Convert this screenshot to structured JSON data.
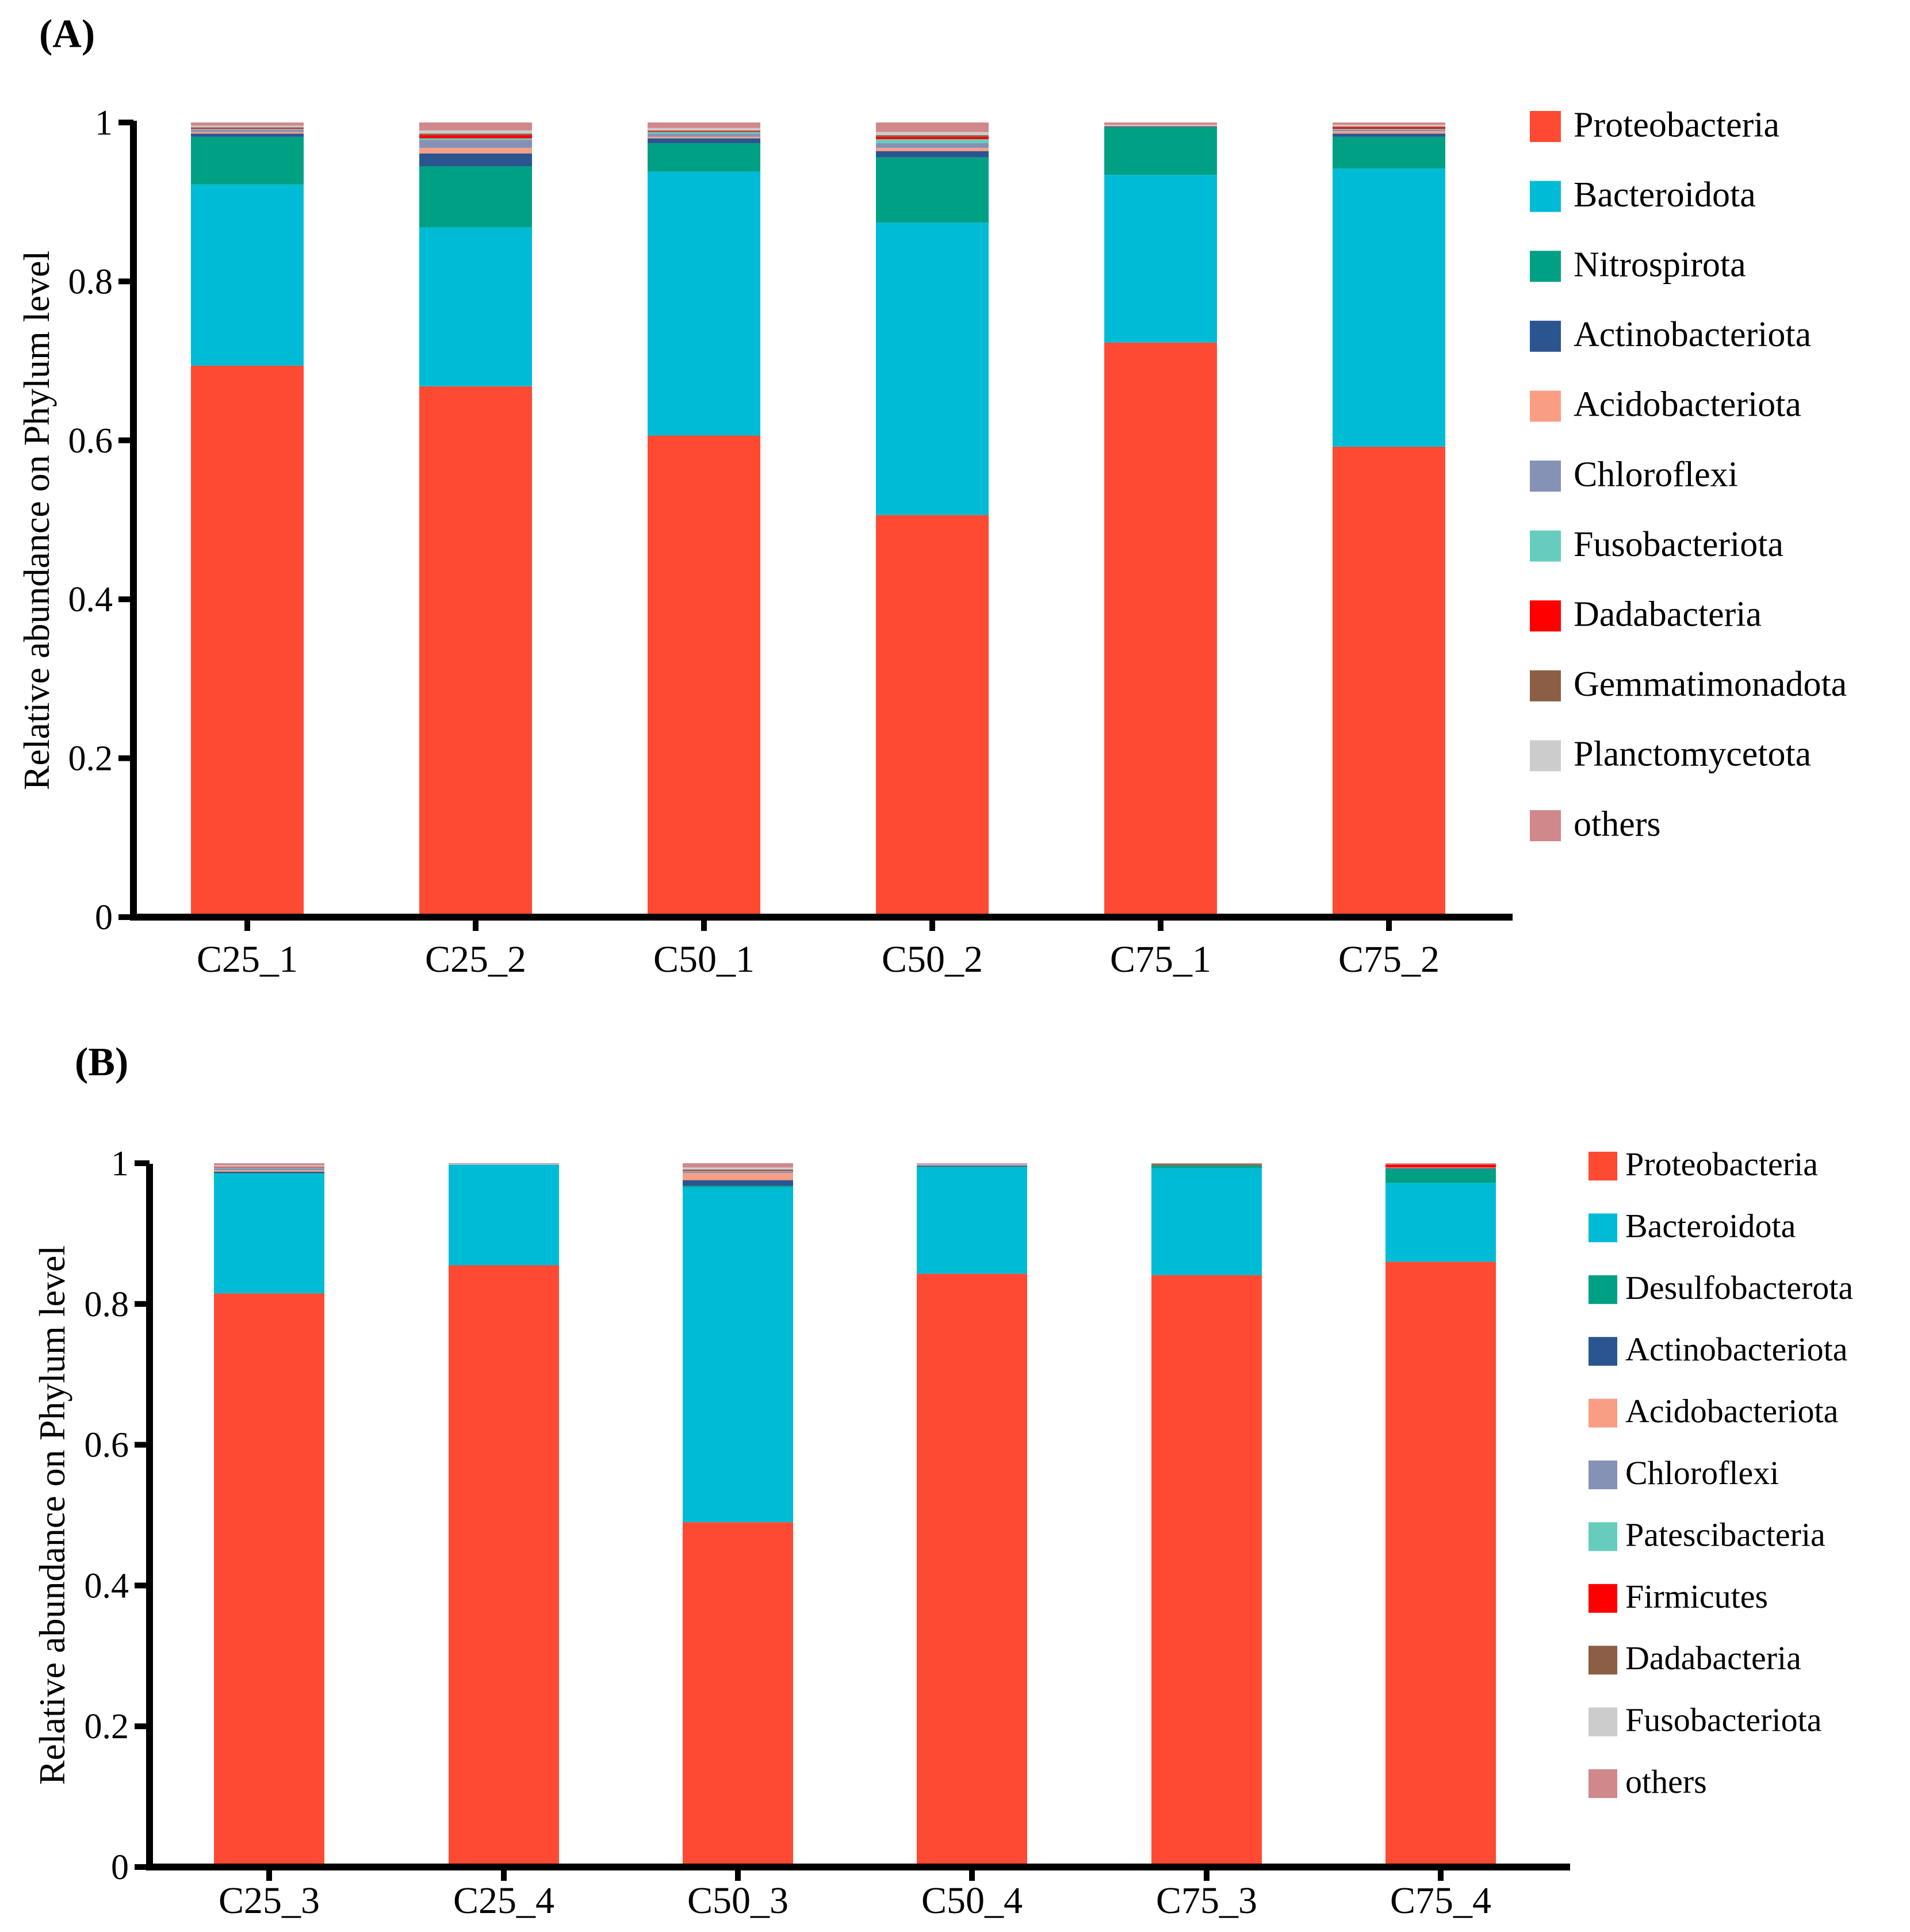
{
  "chart_data": [
    {
      "panel": "(A)",
      "type": "bar",
      "stacked": true,
      "ylabel": "Relative abundance on Phylum level",
      "xlabel": "",
      "ylim": [
        0,
        1
      ],
      "yticks": [
        "0",
        "0.2",
        "0.4",
        "0.6",
        "0.8",
        "1"
      ],
      "categories": [
        "C25_1",
        "C25_2",
        "C50_1",
        "C50_2",
        "C75_1",
        "C75_2"
      ],
      "legend_position": "right",
      "series": [
        {
          "name": "Proteobacteria",
          "color": "#FF4A33",
          "values": [
            0.694,
            0.668,
            0.606,
            0.506,
            0.723,
            0.592
          ]
        },
        {
          "name": "Bacteroidota",
          "color": "#00BBD6",
          "values": [
            0.228,
            0.2,
            0.332,
            0.368,
            0.211,
            0.35
          ]
        },
        {
          "name": "Nitrospirota",
          "color": "#00A085",
          "values": [
            0.06,
            0.077,
            0.036,
            0.082,
            0.06,
            0.04
          ]
        },
        {
          "name": "Actinobacteriota",
          "color": "#2B5590",
          "values": [
            0.004,
            0.016,
            0.006,
            0.008,
            0.001,
            0.004
          ]
        },
        {
          "name": "Acidobacteriota",
          "color": "#F99E84",
          "values": [
            0.002,
            0.007,
            0.002,
            0.004,
            0.001,
            0.003
          ]
        },
        {
          "name": "Chloroflexi",
          "color": "#8592B5",
          "values": [
            0.003,
            0.01,
            0.004,
            0.006,
            0.0,
            0.002
          ]
        },
        {
          "name": "Fusobacteriota",
          "color": "#66CDBE",
          "values": [
            0.001,
            0.002,
            0.002,
            0.005,
            0.0,
            0.001
          ]
        },
        {
          "name": "Dadabacteria",
          "color": "#FF0000",
          "values": [
            0.001,
            0.004,
            0.001,
            0.003,
            0.0,
            0.002
          ]
        },
        {
          "name": "Gemmatimonadota",
          "color": "#8B5E45",
          "values": [
            0.001,
            0.002,
            0.001,
            0.002,
            0.0,
            0.001
          ]
        },
        {
          "name": "Planctomycetota",
          "color": "#CCCCCC",
          "values": [
            0.002,
            0.004,
            0.003,
            0.004,
            0.001,
            0.002
          ]
        },
        {
          "name": "others",
          "color": "#D0888A",
          "values": [
            0.004,
            0.01,
            0.007,
            0.012,
            0.003,
            0.003
          ]
        }
      ]
    },
    {
      "panel": "(B)",
      "type": "bar",
      "stacked": true,
      "ylabel": "Relative abundance on Phylum level",
      "xlabel": "",
      "ylim": [
        0,
        1
      ],
      "yticks": [
        "0",
        "0.2",
        "0.4",
        "0.6",
        "0.8",
        "1"
      ],
      "categories": [
        "C25_3",
        "C25_4",
        "C50_3",
        "C50_4",
        "C75_3",
        "C75_4"
      ],
      "legend_position": "right",
      "series": [
        {
          "name": "Proteobacteria",
          "color": "#FF4A33",
          "values": [
            0.815,
            0.855,
            0.49,
            0.843,
            0.841,
            0.86
          ]
        },
        {
          "name": "Bacteroidota",
          "color": "#00BBD6",
          "values": [
            0.17,
            0.143,
            0.476,
            0.151,
            0.152,
            0.112
          ]
        },
        {
          "name": "Desulfobacterota",
          "color": "#00A085",
          "values": [
            0.001,
            0.0,
            0.002,
            0.001,
            0.004,
            0.02
          ]
        },
        {
          "name": "Actinobacteriota",
          "color": "#2B5590",
          "values": [
            0.002,
            0.0,
            0.008,
            0.001,
            0.0,
            0.001
          ]
        },
        {
          "name": "Acidobacteriota",
          "color": "#F99E84",
          "values": [
            0.002,
            0.0,
            0.01,
            0.0,
            0.0,
            0.001
          ]
        },
        {
          "name": "Chloroflexi",
          "color": "#8592B5",
          "values": [
            0.003,
            0.0,
            0.002,
            0.002,
            0.0,
            0.0
          ]
        },
        {
          "name": "Patescibacteria",
          "color": "#66CDBE",
          "values": [
            0.001,
            0.0,
            0.001,
            0.0,
            0.0,
            0.0
          ]
        },
        {
          "name": "Firmicutes",
          "color": "#FF0000",
          "values": [
            0.001,
            0.0,
            0.001,
            0.0,
            0.0,
            0.004
          ]
        },
        {
          "name": "Dadabacteria",
          "color": "#8B5E45",
          "values": [
            0.0,
            0.0,
            0.001,
            0.0,
            0.002,
            0.0
          ]
        },
        {
          "name": "Fusobacteriota",
          "color": "#CCCCCC",
          "values": [
            0.002,
            0.001,
            0.003,
            0.001,
            0.0,
            0.0
          ]
        },
        {
          "name": "others",
          "color": "#D0888A",
          "values": [
            0.003,
            0.001,
            0.006,
            0.001,
            0.001,
            0.002
          ]
        }
      ]
    }
  ]
}
